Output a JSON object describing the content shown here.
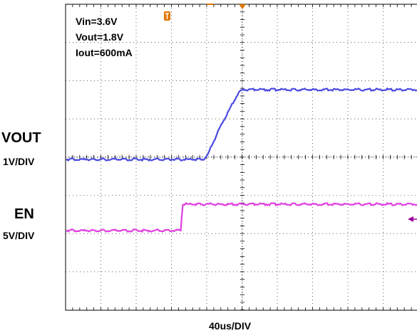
{
  "annotations": {
    "vin": "Vin=3.6V",
    "vout": "Vout=1.8V",
    "iout": "Iout=600mA"
  },
  "channel_labels": {
    "vout_name": "VOUT",
    "vout_scale": "1V/DIV",
    "en_name": "EN",
    "en_scale": "5V/DIV"
  },
  "xlabel": "40us/DIV",
  "colors": {
    "vout_trace": "#4a4ae0",
    "en_trace": "#e040e0",
    "trigger_marker": "#e07800",
    "level_marker": "#a000a0",
    "grid": "#000000"
  },
  "chart_data": {
    "type": "line",
    "title": "",
    "xlabel": "40us/DIV",
    "ylabel": "",
    "x_unit": "us",
    "xlim": [
      -160,
      160
    ],
    "grid": true,
    "series": [
      {
        "name": "VOUT",
        "scale": "1V/DIV",
        "x": [
          -160,
          -45,
          -40,
          -25,
          -5,
          0,
          160
        ],
        "values": [
          0,
          0,
          0.08,
          0.85,
          1.7,
          1.8,
          1.8
        ]
      },
      {
        "name": "EN",
        "scale": "5V/DIV",
        "x": [
          -160,
          -70,
          -69,
          -68,
          160
        ],
        "values": [
          0,
          0,
          2.5,
          6.6,
          6.6
        ]
      }
    ]
  }
}
